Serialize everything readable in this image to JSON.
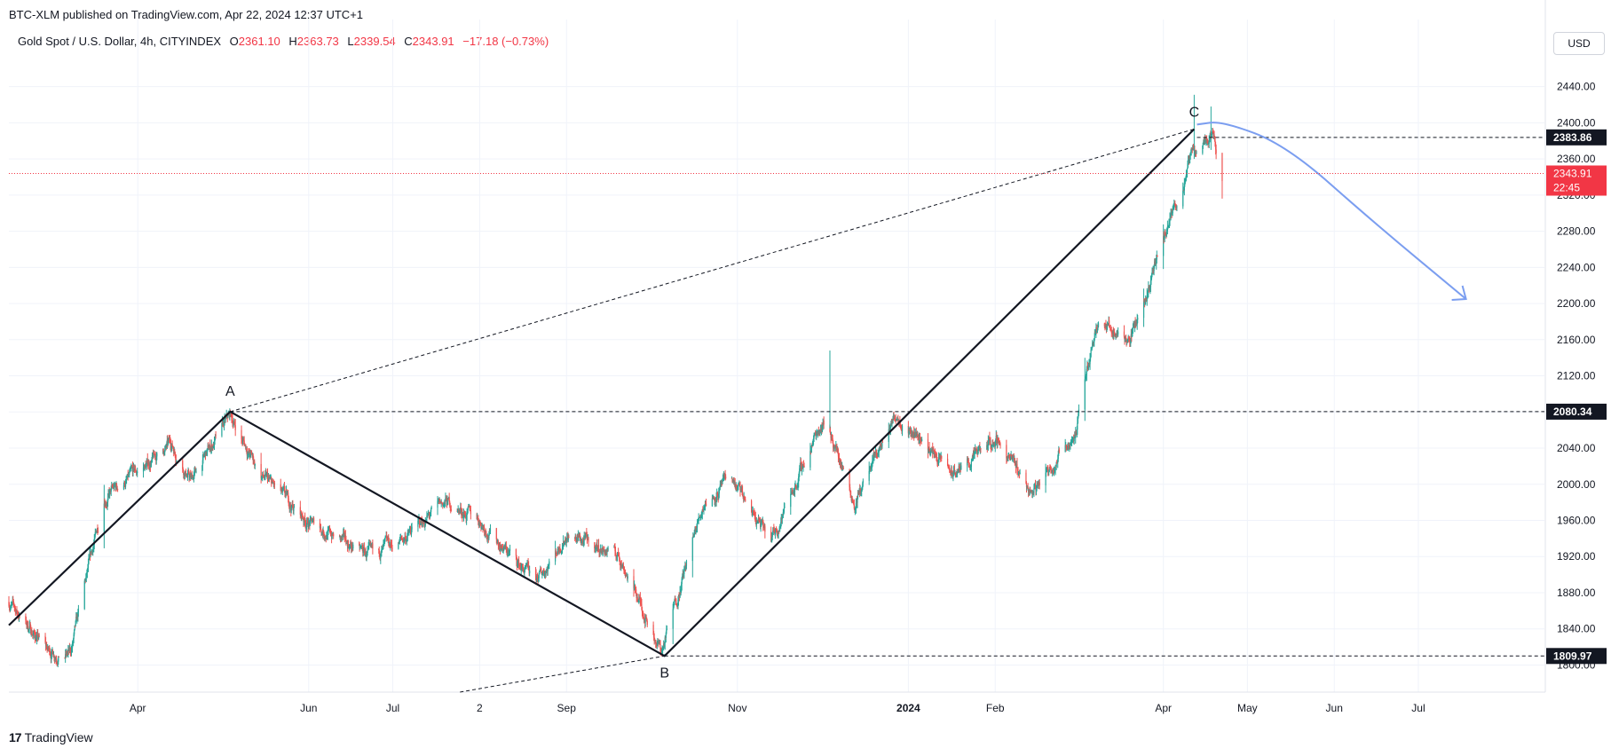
{
  "header": {
    "attribution": "BTC-XLM published on TradingView.com, Apr 22, 2024 12:37 UTC+1"
  },
  "legend": {
    "symbol": "Gold Spot / U.S. Dollar, 4h, CITYINDEX",
    "o_label": "O",
    "o_value": "2361.10",
    "h_label": "H",
    "h_value": "2363.73",
    "l_label": "L",
    "l_value": "2339.54",
    "c_label": "C",
    "c_value": "2343.91",
    "change": "−17.18 (−0.73%)"
  },
  "currency_button": "USD",
  "footer": {
    "logo_text": "TradingView"
  },
  "colors": {
    "up": "#26a69a",
    "down": "#ef5350",
    "grid": "#f0f3fa",
    "forecast": "#7b9ef0",
    "last_price": "#f23645",
    "label_bg": "#131722"
  },
  "chart_data": {
    "type": "candlestick",
    "timeframe": "4h",
    "y_axis": {
      "ticks": [
        1800,
        1840,
        1880,
        1920,
        1960,
        2000,
        2040,
        2080,
        2120,
        2160,
        2200,
        2240,
        2280,
        2320,
        2360,
        2400,
        2440
      ],
      "tick_labels": [
        "1800.00",
        "1840.00",
        "1880.00",
        "1920.00",
        "1960.00",
        "2000.00",
        "2040.00",
        "2080.00",
        "2120.00",
        "2160.00",
        "2200.00",
        "2240.00",
        "2280.00",
        "2320.00",
        "2360.00",
        "2400.00",
        "2440.00"
      ],
      "ylim": [
        1770,
        2475
      ]
    },
    "x_axis": {
      "range": [
        "2023-02-14",
        "2024-08-15"
      ],
      "ticks": [
        {
          "date": "2023-04-01",
          "label": "Apr",
          "bold": false
        },
        {
          "date": "2023-06-01",
          "label": "Jun",
          "bold": false
        },
        {
          "date": "2023-07-01",
          "label": "Jul",
          "bold": false
        },
        {
          "date": "2023-08-01",
          "label": "2",
          "bold": false
        },
        {
          "date": "2023-09-01",
          "label": "Sep",
          "bold": false
        },
        {
          "date": "2023-11-01",
          "label": "Nov",
          "bold": false
        },
        {
          "date": "2024-01-01",
          "label": "2024",
          "bold": true
        },
        {
          "date": "2024-02-01",
          "label": "Feb",
          "bold": false
        },
        {
          "date": "2024-04-01",
          "label": "Apr",
          "bold": false
        },
        {
          "date": "2024-05-01",
          "label": "May",
          "bold": false
        },
        {
          "date": "2024-06-01",
          "label": "Jun",
          "bold": false
        },
        {
          "date": "2024-07-01",
          "label": "Jul",
          "bold": false
        }
      ]
    },
    "price_keypoints": [
      [
        "2023-02-14",
        1870
      ],
      [
        "2023-02-28",
        1815
      ],
      [
        "2023-03-08",
        1812
      ],
      [
        "2023-03-20",
        1985
      ],
      [
        "2023-04-04",
        2020
      ],
      [
        "2023-04-13",
        2045
      ],
      [
        "2023-04-20",
        2005
      ],
      [
        "2023-05-04",
        2075
      ],
      [
        "2023-05-15",
        2010
      ],
      [
        "2023-05-31",
        1960
      ],
      [
        "2023-06-23",
        1920
      ],
      [
        "2023-07-03",
        1935
      ],
      [
        "2023-07-20",
        1980
      ],
      [
        "2023-08-01",
        1960
      ],
      [
        "2023-08-21",
        1890
      ],
      [
        "2023-09-01",
        1945
      ],
      [
        "2023-09-20",
        1920
      ],
      [
        "2023-10-05",
        1815
      ],
      [
        "2023-10-20",
        1980
      ],
      [
        "2023-10-30",
        2005
      ],
      [
        "2023-11-13",
        1935
      ],
      [
        "2023-12-01",
        2070
      ],
      [
        "2023-12-04",
        2060
      ],
      [
        "2023-12-13",
        1980
      ],
      [
        "2023-12-28",
        2080
      ],
      [
        "2024-01-17",
        2010
      ],
      [
        "2024-02-02",
        2050
      ],
      [
        "2024-02-14",
        1990
      ],
      [
        "2024-03-01",
        2060
      ],
      [
        "2024-03-08",
        2180
      ],
      [
        "2024-03-20",
        2160
      ],
      [
        "2024-03-28",
        2230
      ],
      [
        "2024-04-12",
        2370
      ],
      [
        "2024-04-19",
        2390
      ],
      [
        "2024-04-22",
        2343
      ]
    ],
    "last": {
      "open": 2361.1,
      "high": 2363.73,
      "low": 2339.54,
      "close": 2343.91,
      "change": -17.18,
      "change_pct": -0.73,
      "countdown": "22:45"
    },
    "annotations": {
      "points": [
        {
          "label": "A",
          "date": "2023-05-04",
          "price": 2080.34
        },
        {
          "label": "B",
          "date": "2023-10-06",
          "price": 1809.97
        },
        {
          "label": "C",
          "date": "2024-04-12",
          "price": 2393
        }
      ],
      "horizontal_levels": [
        {
          "price": 2383.86,
          "label": "2383.86",
          "from": "2024-04-13"
        },
        {
          "price": 2080.34,
          "label": "2080.34",
          "from": "2023-05-04"
        },
        {
          "price": 1809.97,
          "label": "1809.97",
          "from": "2023-10-06"
        }
      ],
      "dashed_trendline_upper": [
        [
          "2023-05-04",
          2080.34
        ],
        [
          "2024-04-12",
          2393
        ]
      ],
      "dashed_trendline_lower": [
        [
          "2023-07-25",
          1770
        ],
        [
          "2023-10-06",
          1809.97
        ]
      ],
      "forecast_curve": [
        [
          "2024-04-13",
          2398
        ],
        [
          "2024-04-22",
          2402
        ],
        [
          "2024-05-15",
          2375
        ],
        [
          "2024-06-15",
          2290
        ],
        [
          "2024-07-18",
          2205
        ]
      ],
      "forecast_arrow_end": [
        "2024-07-18",
        2205
      ]
    }
  }
}
